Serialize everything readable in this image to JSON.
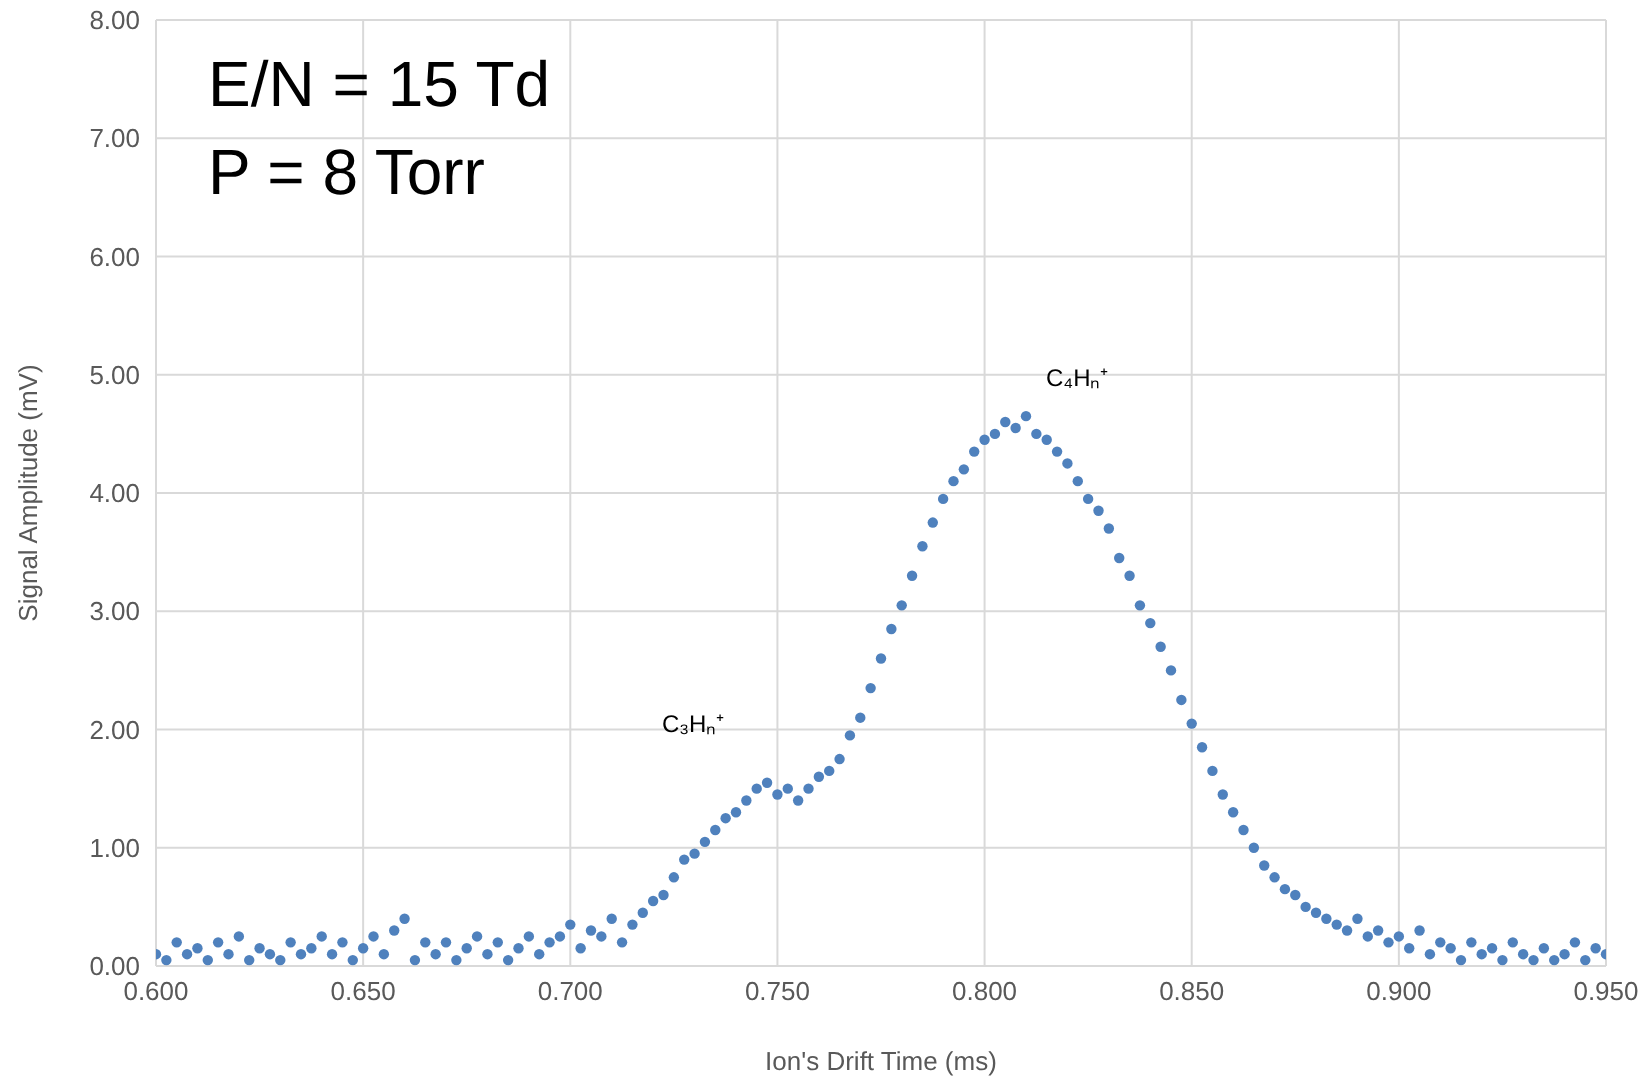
{
  "chart_data": {
    "type": "scatter",
    "xlabel": "Ion's Drift Time (ms)",
    "ylabel": "Signal Amplitude (mV)",
    "annotations": [
      "E/N = 15 Td",
      "P = 8 Torr",
      "C₃Hₙ⁺",
      "C₄Hₙ⁺"
    ],
    "xlim": [
      0.6,
      0.95
    ],
    "ylim": [
      0,
      8
    ],
    "xticks": [
      {
        "value": 0.6,
        "label": "0.600"
      },
      {
        "value": 0.65,
        "label": "0.650"
      },
      {
        "value": 0.7,
        "label": "0.700"
      },
      {
        "value": 0.75,
        "label": "0.750"
      },
      {
        "value": 0.8,
        "label": "0.800"
      },
      {
        "value": 0.85,
        "label": "0.850"
      },
      {
        "value": 0.9,
        "label": "0.900"
      },
      {
        "value": 0.95,
        "label": "0.950"
      }
    ],
    "yticks": [
      {
        "value": 0,
        "label": "0.00"
      },
      {
        "value": 1,
        "label": "1.00"
      },
      {
        "value": 2,
        "label": "2.00"
      },
      {
        "value": 3,
        "label": "3.00"
      },
      {
        "value": 4,
        "label": "4.00"
      },
      {
        "value": 5,
        "label": "5.00"
      },
      {
        "value": 6,
        "label": "6.00"
      },
      {
        "value": 7,
        "label": "7.00"
      },
      {
        "value": 8,
        "label": "8.00"
      }
    ],
    "grid": true,
    "marker": "circle",
    "series": [
      {
        "color": "#4f81bd",
        "x": [
          0.6,
          0.6025,
          0.605,
          0.6075,
          0.61,
          0.6125,
          0.615,
          0.6175,
          0.62,
          0.6225,
          0.625,
          0.6275,
          0.63,
          0.6325,
          0.635,
          0.6375,
          0.64,
          0.6425,
          0.645,
          0.6475,
          0.65,
          0.6525,
          0.655,
          0.6575,
          0.66,
          0.6625,
          0.665,
          0.6675,
          0.67,
          0.6725,
          0.675,
          0.6775,
          0.68,
          0.6825,
          0.685,
          0.6875,
          0.69,
          0.6925,
          0.695,
          0.6975,
          0.7,
          0.7025,
          0.705,
          0.7075,
          0.71,
          0.7125,
          0.715,
          0.7175,
          0.72,
          0.7225,
          0.725,
          0.7275,
          0.73,
          0.7325,
          0.735,
          0.7375,
          0.74,
          0.7425,
          0.745,
          0.7475,
          0.75,
          0.7525,
          0.755,
          0.7575,
          0.76,
          0.7625,
          0.765,
          0.7675,
          0.77,
          0.7725,
          0.775,
          0.7775,
          0.78,
          0.7825,
          0.785,
          0.7875,
          0.79,
          0.7925,
          0.795,
          0.7975,
          0.8,
          0.8025,
          0.805,
          0.8075,
          0.81,
          0.8125,
          0.815,
          0.8175,
          0.82,
          0.8225,
          0.825,
          0.8275,
          0.83,
          0.8325,
          0.835,
          0.8375,
          0.84,
          0.8425,
          0.845,
          0.8475,
          0.85,
          0.8525,
          0.855,
          0.8575,
          0.86,
          0.8625,
          0.865,
          0.8675,
          0.87,
          0.8725,
          0.875,
          0.8775,
          0.88,
          0.8825,
          0.885,
          0.8875,
          0.89,
          0.8925,
          0.895,
          0.8975,
          0.9,
          0.9025,
          0.905,
          0.9075,
          0.91,
          0.9125,
          0.915,
          0.9175,
          0.92,
          0.9225,
          0.925,
          0.9275,
          0.93,
          0.9325,
          0.935,
          0.9375,
          0.94,
          0.9425,
          0.945,
          0.9475,
          0.95
        ],
        "values": [
          0.1,
          0.05,
          0.2,
          0.1,
          0.15,
          0.05,
          0.2,
          0.1,
          0.25,
          0.05,
          0.15,
          0.1,
          0.05,
          0.2,
          0.1,
          0.15,
          0.25,
          0.1,
          0.2,
          0.05,
          0.15,
          0.25,
          0.1,
          0.3,
          0.4,
          0.05,
          0.2,
          0.1,
          0.2,
          0.05,
          0.15,
          0.25,
          0.1,
          0.2,
          0.05,
          0.15,
          0.25,
          0.1,
          0.2,
          0.25,
          0.35,
          0.15,
          0.3,
          0.25,
          0.4,
          0.2,
          0.35,
          0.45,
          0.55,
          0.6,
          0.75,
          0.9,
          0.95,
          1.05,
          1.15,
          1.25,
          1.3,
          1.4,
          1.5,
          1.55,
          1.45,
          1.5,
          1.4,
          1.5,
          1.6,
          1.65,
          1.75,
          1.95,
          2.1,
          2.35,
          2.6,
          2.85,
          3.05,
          3.3,
          3.55,
          3.75,
          3.95,
          4.1,
          4.2,
          4.35,
          4.45,
          4.5,
          4.6,
          4.55,
          4.65,
          4.5,
          4.45,
          4.35,
          4.25,
          4.1,
          3.95,
          3.85,
          3.7,
          3.45,
          3.3,
          3.05,
          2.9,
          2.7,
          2.5,
          2.25,
          2.05,
          1.85,
          1.65,
          1.45,
          1.3,
          1.15,
          1,
          0.85,
          0.75,
          0.65,
          0.6,
          0.5,
          0.45,
          0.4,
          0.35,
          0.3,
          0.4,
          0.25,
          0.3,
          0.2,
          0.25,
          0.15,
          0.3,
          0.1,
          0.2,
          0.15,
          0.05,
          0.2,
          0.1,
          0.15,
          0.05,
          0.2,
          0.1,
          0.05,
          0.15,
          0.05,
          0.1,
          0.2,
          0.05,
          0.15,
          0.1
        ]
      }
    ]
  }
}
